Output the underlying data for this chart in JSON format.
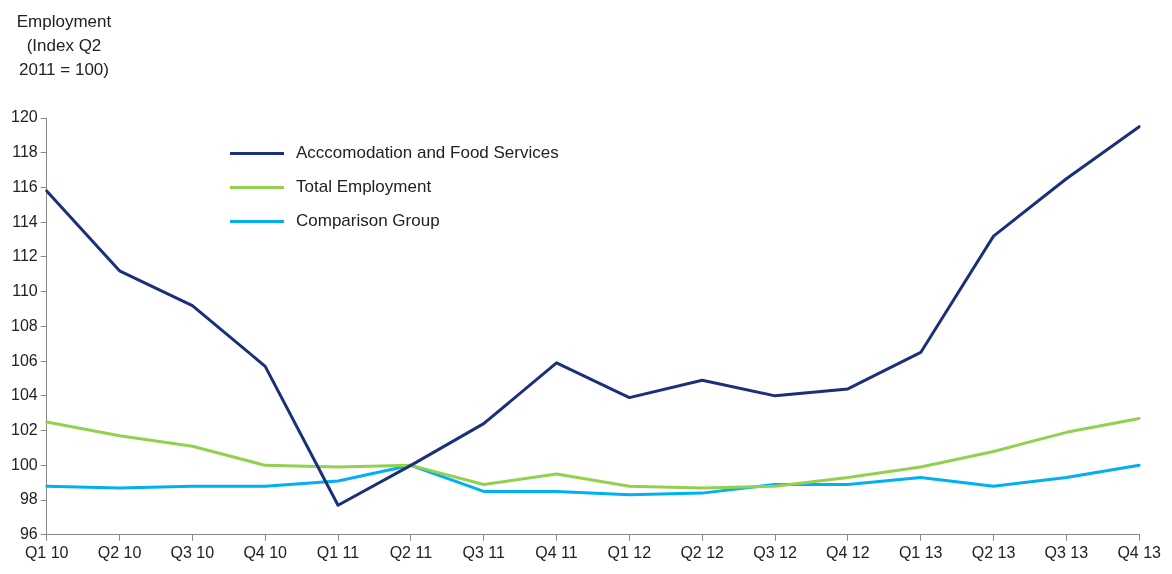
{
  "chart_data": {
    "type": "line",
    "ylabel": "Employment (Index Q2 2011 = 100)",
    "categories": [
      "Q1 10",
      "Q2 10",
      "Q3 10",
      "Q4 10",
      "Q1 11",
      "Q2 11",
      "Q3 11",
      "Q4 11",
      "Q1 12",
      "Q2 12",
      "Q3 12",
      "Q4 12",
      "Q1 13",
      "Q2 13",
      "Q3 13",
      "Q4 13"
    ],
    "series": [
      {
        "name": "Acccomodation and Food Services",
        "color": "#1b2f7a",
        "values": [
          115.8,
          111.2,
          109.2,
          105.7,
          97.7,
          100,
          102.4,
          105.9,
          103.9,
          104.9,
          104.0,
          104.4,
          106.5,
          113.2,
          116.5,
          119.5
        ]
      },
      {
        "name": "Total Employment",
        "color": "#92d050",
        "values": [
          102.5,
          101.7,
          101.1,
          100.0,
          99.9,
          100.0,
          98.9,
          99.5,
          98.8,
          98.7,
          98.8,
          99.3,
          99.9,
          100.8,
          101.9,
          102.7
        ]
      },
      {
        "name": "Comparison Group",
        "color": "#00b0f0",
        "values": [
          98.8,
          98.7,
          98.8,
          98.8,
          99.1,
          100.0,
          98.5,
          98.5,
          98.3,
          98.4,
          98.9,
          98.9,
          99.3,
          98.8,
          99.3,
          100.0
        ]
      }
    ],
    "ylim": [
      96,
      120
    ],
    "yticks": [
      96,
      98,
      100,
      102,
      104,
      106,
      108,
      110,
      112,
      114,
      116,
      118,
      120
    ],
    "grid": false,
    "legend": "top left",
    "marker": "none",
    "line_style": "solid"
  }
}
